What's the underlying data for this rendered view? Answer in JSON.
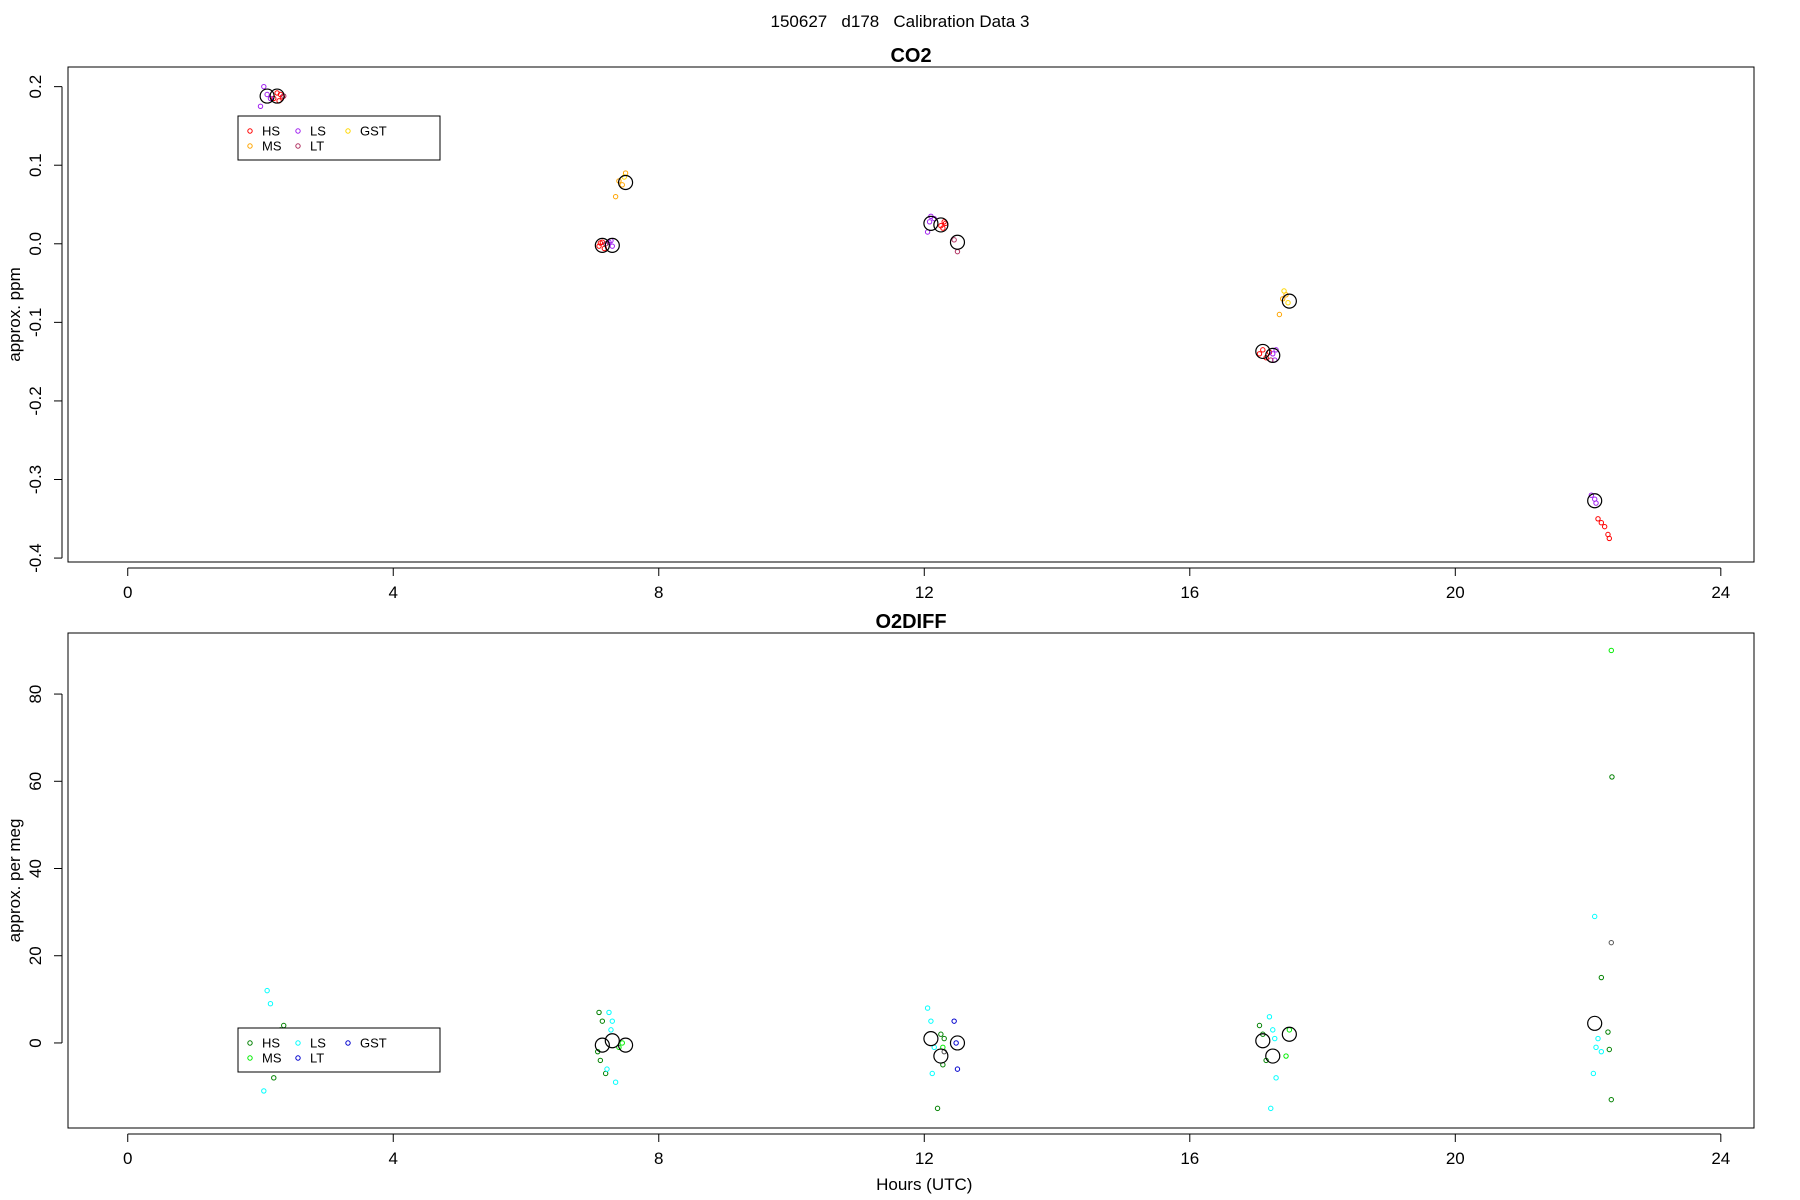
{
  "figure": {
    "title": "150627   d178   Calibration Data 3"
  },
  "chart_data": [
    {
      "type": "scatter",
      "title": "CO2",
      "xlabel": "",
      "ylabel": "approx. ppm",
      "xlim": [
        -0.9,
        24.5
      ],
      "ylim": [
        -0.405,
        0.225
      ],
      "xticks": [
        0,
        4,
        8,
        12,
        16,
        20,
        24
      ],
      "yticks": [
        0.2,
        0.1,
        0.0,
        -0.1,
        -0.2,
        -0.3,
        -0.4
      ],
      "ytick_labels": [
        "0.2",
        "0.1",
        "0.0",
        "-0.1",
        "-0.2",
        "-0.3",
        "-0.4"
      ],
      "legend": {
        "position": "top-left",
        "columns": 3,
        "entries": [
          {
            "label": "HS",
            "color": "#ff0000"
          },
          {
            "label": "MS",
            "color": "#ffa500"
          },
          {
            "label": "LS",
            "color": "#a020f0"
          },
          {
            "label": "LT",
            "color": "#b03060"
          },
          {
            "label": "GST",
            "color": "#ffd700"
          }
        ]
      },
      "series": [
        {
          "color": "#ff0000",
          "x": [
            2.2,
            2.25,
            2.3,
            2.28,
            2.33,
            7.1,
            7.15,
            7.18,
            7.12,
            12.25,
            12.3,
            12.28,
            12.32,
            17.05,
            17.1,
            17.15,
            17.2,
            22.15,
            22.2,
            22.25,
            22.3,
            22.32
          ],
          "y": [
            0.185,
            0.192,
            0.19,
            0.182,
            0.187,
            -0.003,
            0.002,
            -0.006,
            0.001,
            0.023,
            0.028,
            0.02,
            0.026,
            -0.14,
            -0.135,
            -0.145,
            -0.138,
            -0.35,
            -0.355,
            -0.36,
            -0.37,
            -0.375
          ]
        },
        {
          "color": "#ffa500",
          "x": [
            7.35,
            7.45,
            7.5,
            7.4,
            17.35,
            17.4,
            17.45
          ],
          "y": [
            0.06,
            0.075,
            0.09,
            0.08,
            -0.09,
            -0.07,
            -0.065
          ]
        },
        {
          "color": "#a020f0",
          "x": [
            2.0,
            2.05,
            2.1,
            2.15,
            7.25,
            7.3,
            7.28,
            12.05,
            12.1,
            12.08,
            12.15,
            17.25,
            17.3,
            17.28,
            22.05,
            22.1,
            22.12
          ],
          "y": [
            0.175,
            0.2,
            0.19,
            0.185,
            0.002,
            -0.003,
            0.004,
            0.015,
            0.035,
            0.028,
            0.032,
            -0.14,
            -0.135,
            -0.148,
            -0.32,
            -0.325,
            -0.33
          ]
        },
        {
          "color": "#b03060",
          "x": [
            2.35,
            7.2,
            12.45,
            12.5,
            17.22
          ],
          "y": [
            0.188,
            0.0,
            0.005,
            -0.01,
            -0.148
          ]
        },
        {
          "color": "#ffd700",
          "x": [
            7.48,
            17.42,
            17.48
          ],
          "y": [
            0.085,
            -0.06,
            -0.075
          ]
        },
        {
          "color": "#000000",
          "role": "mean",
          "x": [
            2.1,
            2.25,
            7.15,
            7.3,
            7.5,
            12.1,
            12.25,
            12.5,
            17.1,
            17.25,
            17.5,
            22.1
          ],
          "y": [
            0.188,
            0.188,
            -0.002,
            -0.002,
            0.078,
            0.026,
            0.024,
            0.002,
            -0.137,
            -0.142,
            -0.073,
            -0.327
          ]
        }
      ]
    },
    {
      "type": "scatter",
      "title": "O2DIFF",
      "xlabel": "Hours (UTC)",
      "ylabel": "approx. per meg",
      "xlim": [
        -0.9,
        24.5
      ],
      "ylim": [
        -19.5,
        94
      ],
      "xticks": [
        0,
        4,
        8,
        12,
        16,
        20,
        24
      ],
      "yticks": [
        0,
        20,
        40,
        60,
        80
      ],
      "ytick_labels": [
        "0",
        "20",
        "40",
        "60",
        "80"
      ],
      "legend": {
        "position": "bottom-left",
        "columns": 3,
        "entries": [
          {
            "label": "HS",
            "color": "#008000"
          },
          {
            "label": "MS",
            "color": "#00ee00"
          },
          {
            "label": "LS",
            "color": "#00ffff"
          },
          {
            "label": "LT",
            "color": "#0000cd"
          },
          {
            "label": "GST",
            "color": "#0000cd"
          }
        ]
      },
      "series": [
        {
          "color": "#008000",
          "x": [
            2.3,
            2.35,
            2.2,
            7.1,
            7.15,
            7.2,
            7.12,
            7.08,
            12.2,
            12.25,
            12.3,
            12.28,
            17.05,
            17.1,
            17.15,
            22.2,
            22.3,
            22.32,
            22.35,
            22.36
          ],
          "y": [
            3,
            4,
            -8,
            7,
            5,
            -7,
            -4,
            -2,
            -15,
            2,
            1,
            -5,
            4,
            2,
            -4,
            15,
            2.5,
            -1.5,
            -13,
            61
          ]
        },
        {
          "color": "#00ee00",
          "x": [
            7.4,
            7.45,
            12.28,
            17.45,
            17.5,
            22.35
          ],
          "y": [
            -1,
            0,
            -1,
            -3,
            3,
            90
          ]
        },
        {
          "color": "#00ffff",
          "x": [
            2.05,
            2.1,
            2.15,
            7.25,
            7.3,
            7.35,
            7.28,
            7.22,
            12.05,
            12.1,
            12.15,
            12.12,
            17.2,
            17.25,
            17.3,
            17.28,
            17.22,
            22.1,
            22.15,
            22.2,
            22.12,
            22.08
          ],
          "y": [
            -11,
            12,
            9,
            7,
            5,
            -9,
            3,
            -6,
            8,
            5,
            -1,
            -7,
            6,
            3,
            -8,
            1,
            -15,
            29,
            1,
            -2,
            -1,
            -7
          ]
        },
        {
          "color": "#0000cd",
          "x": [
            12.45,
            12.5,
            12.48
          ],
          "y": [
            5,
            -6,
            0
          ]
        },
        {
          "color": "#555555",
          "x": [
            22.35,
            12.3
          ],
          "y": [
            23,
            -2
          ]
        },
        {
          "color": "#000000",
          "role": "mean",
          "x": [
            7.15,
            7.3,
            7.5,
            12.1,
            12.25,
            12.5,
            17.1,
            17.25,
            17.5,
            22.1
          ],
          "y": [
            -0.5,
            0.5,
            -0.5,
            1,
            -3,
            0,
            0.5,
            -3,
            2,
            4.5
          ]
        }
      ]
    }
  ]
}
